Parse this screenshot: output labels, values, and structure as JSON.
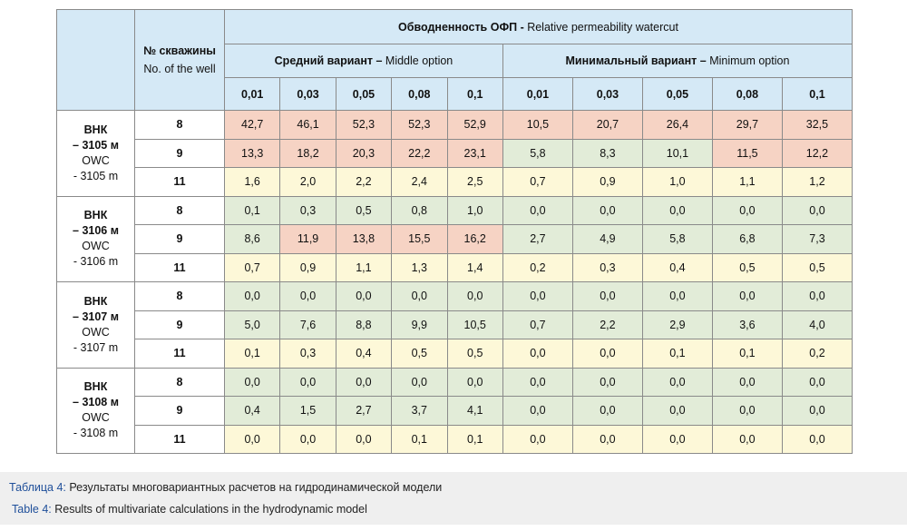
{
  "header": {
    "well_ru": "№ скважины",
    "well_en": "No. of the well",
    "watercut_ru": "Обводненность ОФП -",
    "watercut_en": " Relative permeability watercut",
    "middle_ru": "Средний вариант –",
    "middle_en": " Middle option",
    "min_ru": "Минимальный вариант –",
    "min_en": " Minimum option",
    "params": [
      "0,01",
      "0,03",
      "0,05",
      "0,08",
      "0,1",
      "0,01",
      "0,03",
      "0,05",
      "0,08",
      "0,1"
    ]
  },
  "colors": {
    "red": "#f6d3c4",
    "green": "#e2ecd8",
    "yellow": "#fdf8d8"
  },
  "groups": [
    {
      "ru1": "ВНК",
      "ru2": "– 3105 м",
      "en1": "OWC",
      "en2": "- 3105 m",
      "rows": [
        {
          "well": "8",
          "values": [
            "42,7",
            "46,1",
            "52,3",
            "52,3",
            "52,9",
            "10,5",
            "20,7",
            "26,4",
            "29,7",
            "32,5"
          ],
          "colors": [
            "red",
            "red",
            "red",
            "red",
            "red",
            "red",
            "red",
            "red",
            "red",
            "red"
          ]
        },
        {
          "well": "9",
          "values": [
            "13,3",
            "18,2",
            "20,3",
            "22,2",
            "23,1",
            "5,8",
            "8,3",
            "10,1",
            "11,5",
            "12,2"
          ],
          "colors": [
            "red",
            "red",
            "red",
            "red",
            "red",
            "green",
            "green",
            "green",
            "red",
            "red"
          ]
        },
        {
          "well": "11",
          "values": [
            "1,6",
            "2,0",
            "2,2",
            "2,4",
            "2,5",
            "0,7",
            "0,9",
            "1,0",
            "1,1",
            "1,2"
          ],
          "colors": [
            "yellow",
            "yellow",
            "yellow",
            "yellow",
            "yellow",
            "yellow",
            "yellow",
            "yellow",
            "yellow",
            "yellow"
          ]
        }
      ]
    },
    {
      "ru1": "ВНК",
      "ru2": "– 3106 м",
      "en1": "OWC",
      "en2": "- 3106 m",
      "rows": [
        {
          "well": "8",
          "values": [
            "0,1",
            "0,3",
            "0,5",
            "0,8",
            "1,0",
            "0,0",
            "0,0",
            "0,0",
            "0,0",
            "0,0"
          ],
          "colors": [
            "green",
            "green",
            "green",
            "green",
            "green",
            "green",
            "green",
            "green",
            "green",
            "green"
          ]
        },
        {
          "well": "9",
          "values": [
            "8,6",
            "11,9",
            "13,8",
            "15,5",
            "16,2",
            "2,7",
            "4,9",
            "5,8",
            "6,8",
            "7,3"
          ],
          "colors": [
            "green",
            "red",
            "red",
            "red",
            "red",
            "green",
            "green",
            "green",
            "green",
            "green"
          ]
        },
        {
          "well": "11",
          "values": [
            "0,7",
            "0,9",
            "1,1",
            "1,3",
            "1,4",
            "0,2",
            "0,3",
            "0,4",
            "0,5",
            "0,5"
          ],
          "colors": [
            "yellow",
            "yellow",
            "yellow",
            "yellow",
            "yellow",
            "yellow",
            "yellow",
            "yellow",
            "yellow",
            "yellow"
          ]
        }
      ]
    },
    {
      "ru1": "ВНК",
      "ru2": "– 3107 м",
      "en1": "OWC",
      "en2": "- 3107 m",
      "rows": [
        {
          "well": "8",
          "values": [
            "0,0",
            "0,0",
            "0,0",
            "0,0",
            "0,0",
            "0,0",
            "0,0",
            "0,0",
            "0,0",
            "0,0"
          ],
          "colors": [
            "green",
            "green",
            "green",
            "green",
            "green",
            "green",
            "green",
            "green",
            "green",
            "green"
          ]
        },
        {
          "well": "9",
          "values": [
            "5,0",
            "7,6",
            "8,8",
            "9,9",
            "10,5",
            "0,7",
            "2,2",
            "2,9",
            "3,6",
            "4,0"
          ],
          "colors": [
            "green",
            "green",
            "green",
            "green",
            "green",
            "green",
            "green",
            "green",
            "green",
            "green"
          ]
        },
        {
          "well": "11",
          "values": [
            "0,1",
            "0,3",
            "0,4",
            "0,5",
            "0,5",
            "0,0",
            "0,0",
            "0,1",
            "0,1",
            "0,2"
          ],
          "colors": [
            "yellow",
            "yellow",
            "yellow",
            "yellow",
            "yellow",
            "yellow",
            "yellow",
            "yellow",
            "yellow",
            "yellow"
          ]
        }
      ]
    },
    {
      "ru1": "ВНК",
      "ru2": "– 3108 м",
      "en1": "OWC",
      "en2": "- 3108 m",
      "rows": [
        {
          "well": "8",
          "values": [
            "0,0",
            "0,0",
            "0,0",
            "0,0",
            "0,0",
            "0,0",
            "0,0",
            "0,0",
            "0,0",
            "0,0"
          ],
          "colors": [
            "green",
            "green",
            "green",
            "green",
            "green",
            "green",
            "green",
            "green",
            "green",
            "green"
          ]
        },
        {
          "well": "9",
          "values": [
            "0,4",
            "1,5",
            "2,7",
            "3,7",
            "4,1",
            "0,0",
            "0,0",
            "0,0",
            "0,0",
            "0,0"
          ],
          "colors": [
            "green",
            "green",
            "green",
            "green",
            "green",
            "green",
            "green",
            "green",
            "green",
            "green"
          ]
        },
        {
          "well": "11",
          "values": [
            "0,0",
            "0,0",
            "0,0",
            "0,1",
            "0,1",
            "0,0",
            "0,0",
            "0,0",
            "0,0",
            "0,0"
          ],
          "colors": [
            "yellow",
            "yellow",
            "yellow",
            "yellow",
            "yellow",
            "yellow",
            "yellow",
            "yellow",
            "yellow",
            "yellow"
          ]
        }
      ]
    }
  ],
  "caption": {
    "ru_label": "Таблица 4:",
    "ru_text": " Результаты многовариантных расчетов на гидродинамической модели",
    "en_label": "Table 4:",
    "en_text": " Results of multivariate calculations in the hydrodynamic model"
  }
}
